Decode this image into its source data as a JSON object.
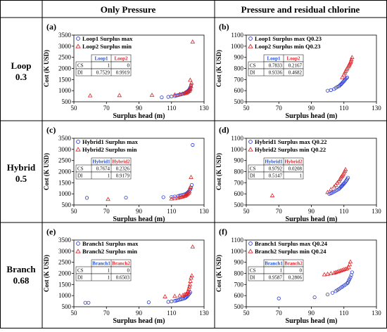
{
  "headers": {
    "col1": "Only Pressure",
    "col2": "Pressure and residual chlorine"
  },
  "rows": [
    {
      "name": "Loop",
      "value": "0.3"
    },
    {
      "name": "Hybrid",
      "value": "0.5"
    },
    {
      "name": "Branch",
      "value": "0.68"
    }
  ],
  "colors": {
    "series_max": "#2a3bd6",
    "series_min": "#e0242a",
    "label_blue": "#1f4fd8",
    "label_red": "#e0242a"
  },
  "chart_data": [
    {
      "type": "scatter",
      "label": "(a)",
      "ylabel": "Cost (K USD)",
      "xlabel": "Surplus head (m)",
      "xlim": [
        50,
        130
      ],
      "ylim": [
        500,
        3500
      ],
      "xticks": [
        50,
        70,
        90,
        110,
        130
      ],
      "yticks": [
        500,
        1000,
        1500,
        2000,
        2500,
        3000,
        3500
      ],
      "table": {
        "cols": [
          "Loop1",
          "Loop2"
        ],
        "rows": [
          {
            "name": "CS",
            "values": [
              "1",
              "0"
            ]
          },
          {
            "name": "DI",
            "values": [
              "0.7529",
              "0.9919"
            ]
          }
        ]
      },
      "series": [
        {
          "name": "Loop1 Surplus max",
          "marker": "circle",
          "x": [
            104,
            108,
            110,
            112,
            113,
            114,
            115,
            116,
            117,
            118,
            118.5,
            119,
            119.5,
            120,
            120.3,
            120.6,
            121,
            121.3,
            121.6,
            122
          ],
          "y": [
            700,
            720,
            740,
            760,
            780,
            800,
            820,
            840,
            860,
            880,
            900,
            930,
            950,
            980,
            1000,
            1020,
            1050,
            1100,
            1150,
            1250
          ]
        },
        {
          "name": "Loop2 Surplus min",
          "marker": "triangle",
          "x": [
            60,
            78,
            98,
            112,
            115,
            117,
            118,
            119,
            119.5,
            120,
            120.5,
            121,
            121.3,
            121.6,
            122,
            122.3,
            121.5,
            123
          ],
          "y": [
            780,
            790,
            800,
            820,
            840,
            860,
            880,
            900,
            920,
            950,
            980,
            1000,
            1050,
            1100,
            1200,
            1350,
            1480,
            3200
          ]
        }
      ]
    },
    {
      "type": "scatter",
      "label": "(b)",
      "ylabel": "Cost (K USD)",
      "xlabel": "Surplus head (m)",
      "xlim": [
        50,
        130
      ],
      "ylim": [
        500,
        1100
      ],
      "xticks": [
        50,
        70,
        90,
        110,
        130
      ],
      "yticks": [
        500,
        600,
        700,
        800,
        900,
        1000,
        1100
      ],
      "table": {
        "cols": [
          "Loop1",
          "Loop2"
        ],
        "rows": [
          {
            "name": "CS",
            "values": [
              "0.7833",
              "0.2167"
            ]
          },
          {
            "name": "DI",
            "values": [
              "0.9336",
              "0.4682"
            ]
          }
        ]
      },
      "series": [
        {
          "name": "Loop1 Surplus max Q0.23",
          "marker": "circle",
          "x": [
            100,
            102,
            104,
            105,
            106,
            107,
            107.5,
            108,
            108.5,
            109,
            109.5,
            110,
            110.5,
            111,
            111.5,
            112
          ],
          "y": [
            600,
            605,
            615,
            625,
            635,
            640,
            648,
            655,
            662,
            670,
            678,
            685,
            695,
            705,
            712,
            720
          ]
        },
        {
          "name": "Loop2 Surplus min Q0.23",
          "marker": "triangle",
          "x": [
            109,
            110,
            110.5,
            111,
            111.5,
            112,
            112.5,
            113,
            113.3,
            113.6,
            114,
            114.3,
            114.6,
            115
          ],
          "y": [
            720,
            745,
            760,
            775,
            790,
            800,
            815,
            825,
            835,
            845,
            855,
            865,
            880,
            900
          ]
        }
      ]
    },
    {
      "type": "scatter",
      "label": "(c)",
      "ylabel": "Cost (K USD)",
      "xlabel": "Surplus head (m)",
      "xlim": [
        50,
        130
      ],
      "ylim": [
        500,
        3500
      ],
      "xticks": [
        50,
        70,
        90,
        110,
        130
      ],
      "yticks": [
        500,
        1000,
        1500,
        2000,
        2500,
        3000,
        3500
      ],
      "table": {
        "cols": [
          "Hybrid1",
          "Hybrid2"
        ],
        "rows": [
          {
            "name": "CS",
            "values": [
              "0.7674",
              "0.2326"
            ]
          },
          {
            "name": "DI",
            "values": [
              "1",
              "0.9179"
            ]
          }
        ]
      },
      "series": [
        {
          "name": "Hybrid1 Surplus max",
          "marker": "circle",
          "x": [
            58,
            82,
            105,
            110,
            112,
            114,
            115,
            116,
            117,
            118,
            119,
            119.5,
            120,
            120.5,
            121,
            121.5,
            122,
            122.5,
            123
          ],
          "y": [
            820,
            830,
            850,
            860,
            880,
            900,
            920,
            940,
            960,
            980,
            1000,
            1030,
            1060,
            1100,
            1150,
            1200,
            1280,
            1400,
            3200
          ]
        },
        {
          "name": "Hybrid2 Surplus min",
          "marker": "triangle",
          "x": [
            71,
            110,
            112,
            114,
            115,
            116,
            117,
            118,
            118.5,
            119,
            119.5,
            120,
            120.5,
            121,
            121.5,
            122
          ],
          "y": [
            760,
            780,
            800,
            820,
            840,
            860,
            880,
            900,
            920,
            950,
            980,
            1010,
            1050,
            1100,
            1300,
            1750
          ]
        }
      ]
    },
    {
      "type": "scatter",
      "label": "(d)",
      "ylabel": "Cost (K USD)",
      "xlabel": "Surplus head (m)",
      "xlim": [
        50,
        130
      ],
      "ylim": [
        500,
        1100
      ],
      "xticks": [
        50,
        70,
        90,
        110,
        130
      ],
      "yticks": [
        500,
        600,
        700,
        800,
        900,
        1000,
        1100
      ],
      "table": {
        "cols": [
          "Hybrid1",
          "Hybrid2"
        ],
        "rows": [
          {
            "name": "CS",
            "values": [
              "0.9792",
              "0.0208"
            ]
          },
          {
            "name": "DI",
            "values": [
              "0.5147",
              "1"
            ]
          }
        ]
      },
      "series": [
        {
          "name": "Hybrid1 Surplus max Q0.22",
          "marker": "circle",
          "x": [
            101,
            102,
            103,
            104,
            105,
            106,
            107,
            107.5,
            108,
            108.5,
            109,
            109.5,
            110,
            110.5,
            111,
            111.5,
            112,
            112.5
          ],
          "y": [
            600,
            605,
            612,
            620,
            628,
            636,
            645,
            652,
            660,
            668,
            676,
            684,
            692,
            700,
            710,
            720,
            732,
            745
          ]
        },
        {
          "name": "Hybrid2 Surplus min Q0.22",
          "marker": "triangle",
          "x": [
            66,
            100,
            102,
            104,
            105,
            106,
            107,
            107.5,
            108,
            108.5,
            109,
            109.5,
            110,
            110.5,
            111
          ],
          "y": [
            585,
            615,
            640,
            665,
            680,
            700,
            715,
            730,
            745,
            755,
            765,
            775,
            790,
            805,
            820
          ]
        }
      ]
    },
    {
      "type": "scatter",
      "label": "(e)",
      "ylabel": "Cost (K USD)",
      "xlabel": "Surplus head (m)",
      "xlim": [
        50,
        130
      ],
      "ylim": [
        500,
        3500
      ],
      "xticks": [
        50,
        70,
        90,
        110,
        130
      ],
      "yticks": [
        500,
        1000,
        1500,
        2000,
        2500,
        3000,
        3500
      ],
      "table": {
        "cols": [
          "Branch1",
          "Branch2"
        ],
        "rows": [
          {
            "name": "CS",
            "values": [
              "1",
              "0"
            ]
          },
          {
            "name": "DI",
            "values": [
              "1",
              "0.6503"
            ]
          }
        ]
      },
      "series": [
        {
          "name": "Branch1 Surplus max",
          "marker": "circle",
          "x": [
            57,
            59,
            96,
            108,
            110,
            112,
            113,
            114,
            115,
            116,
            117,
            118,
            118.5,
            119,
            119.5,
            120,
            120.5,
            121,
            121.5
          ],
          "y": [
            680,
            680,
            700,
            720,
            740,
            760,
            780,
            800,
            820,
            840,
            860,
            880,
            900,
            930,
            960,
            1000,
            1050,
            1100,
            1150
          ]
        },
        {
          "name": "Branch2 Surplus min",
          "marker": "triangle",
          "x": [
            106,
            112,
            115,
            117,
            118,
            119,
            119.5,
            120,
            120.3,
            120.6,
            121,
            121.3,
            121.6,
            122,
            122.5,
            123
          ],
          "y": [
            960,
            980,
            1000,
            1020,
            1050,
            1080,
            1100,
            1150,
            1200,
            1300,
            1400,
            1500,
            1650,
            1800,
            1900,
            3200
          ]
        }
      ]
    },
    {
      "type": "scatter",
      "label": "(f)",
      "ylabel": "Cost (K USD)",
      "xlabel": "Surplus head (m)",
      "xlim": [
        50,
        130
      ],
      "ylim": [
        500,
        1100
      ],
      "xticks": [
        50,
        70,
        90,
        110,
        130
      ],
      "yticks": [
        500,
        600,
        700,
        800,
        900,
        1000,
        1100
      ],
      "table": {
        "cols": [
          "Branch1",
          "Branch2"
        ],
        "rows": [
          {
            "name": "CS",
            "values": [
              "1",
              "0"
            ]
          },
          {
            "name": "DI",
            "values": [
              "0.9587",
              "0.2806"
            ]
          }
        ]
      },
      "series": [
        {
          "name": "Branch1 Surplus max Q0.24",
          "marker": "circle",
          "x": [
            70,
            92,
            100,
            103,
            105,
            106,
            107,
            108,
            109,
            110,
            111,
            112,
            112.5,
            113,
            113.5,
            114,
            114.5,
            115
          ],
          "y": [
            575,
            585,
            610,
            625,
            640,
            650,
            660,
            670,
            680,
            690,
            700,
            710,
            720,
            735,
            750,
            765,
            785,
            810
          ]
        },
        {
          "name": "Branch2 Surplus min Q0.24",
          "marker": "triangle",
          "x": [
            98,
            100,
            102,
            104,
            105,
            106,
            107,
            108,
            109,
            110,
            111,
            112,
            113,
            113.5,
            114
          ],
          "y": [
            790,
            795,
            800,
            805,
            810,
            815,
            820,
            825,
            830,
            835,
            840,
            845,
            855,
            880,
            905
          ]
        }
      ]
    }
  ]
}
